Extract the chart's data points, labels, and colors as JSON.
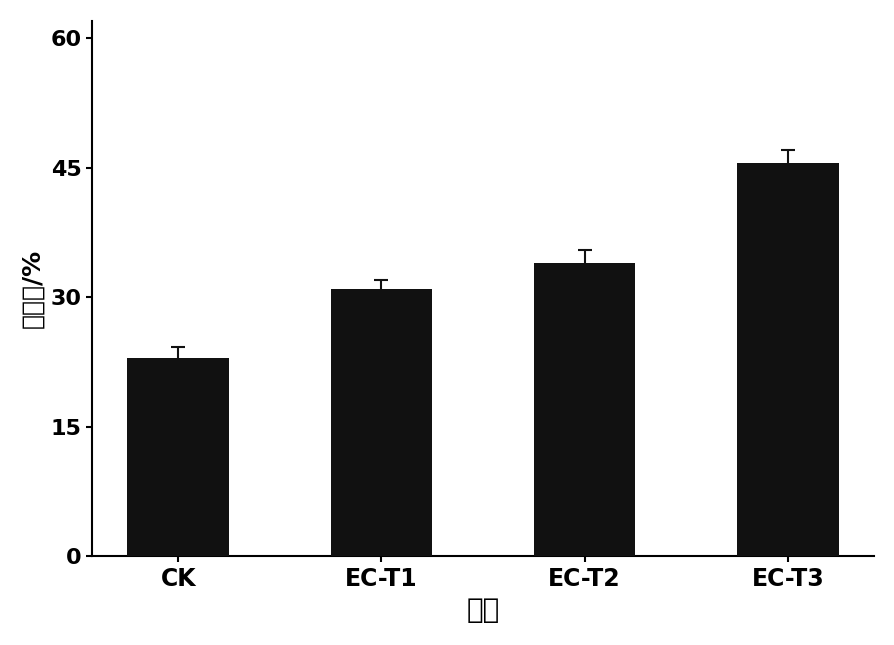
{
  "categories": [
    "CK",
    "EC-T1",
    "EC-T2",
    "EC-T3"
  ],
  "values": [
    23.0,
    31.0,
    34.0,
    45.5
  ],
  "errors": [
    1.2,
    1.0,
    1.5,
    1.5
  ],
  "bar_color": "#111111",
  "bar_width": 0.5,
  "ylabel": "返青率/%",
  "xlabel": "处理",
  "yticks": [
    0,
    15,
    30,
    45,
    60
  ],
  "ylim": [
    0,
    62
  ],
  "background_color": "#ffffff",
  "ylabel_fontsize": 18,
  "xlabel_fontsize": 20,
  "tick_fontsize": 16,
  "xtick_fontsize": 17,
  "error_capsize": 5,
  "error_linewidth": 1.5,
  "error_color": "#111111"
}
